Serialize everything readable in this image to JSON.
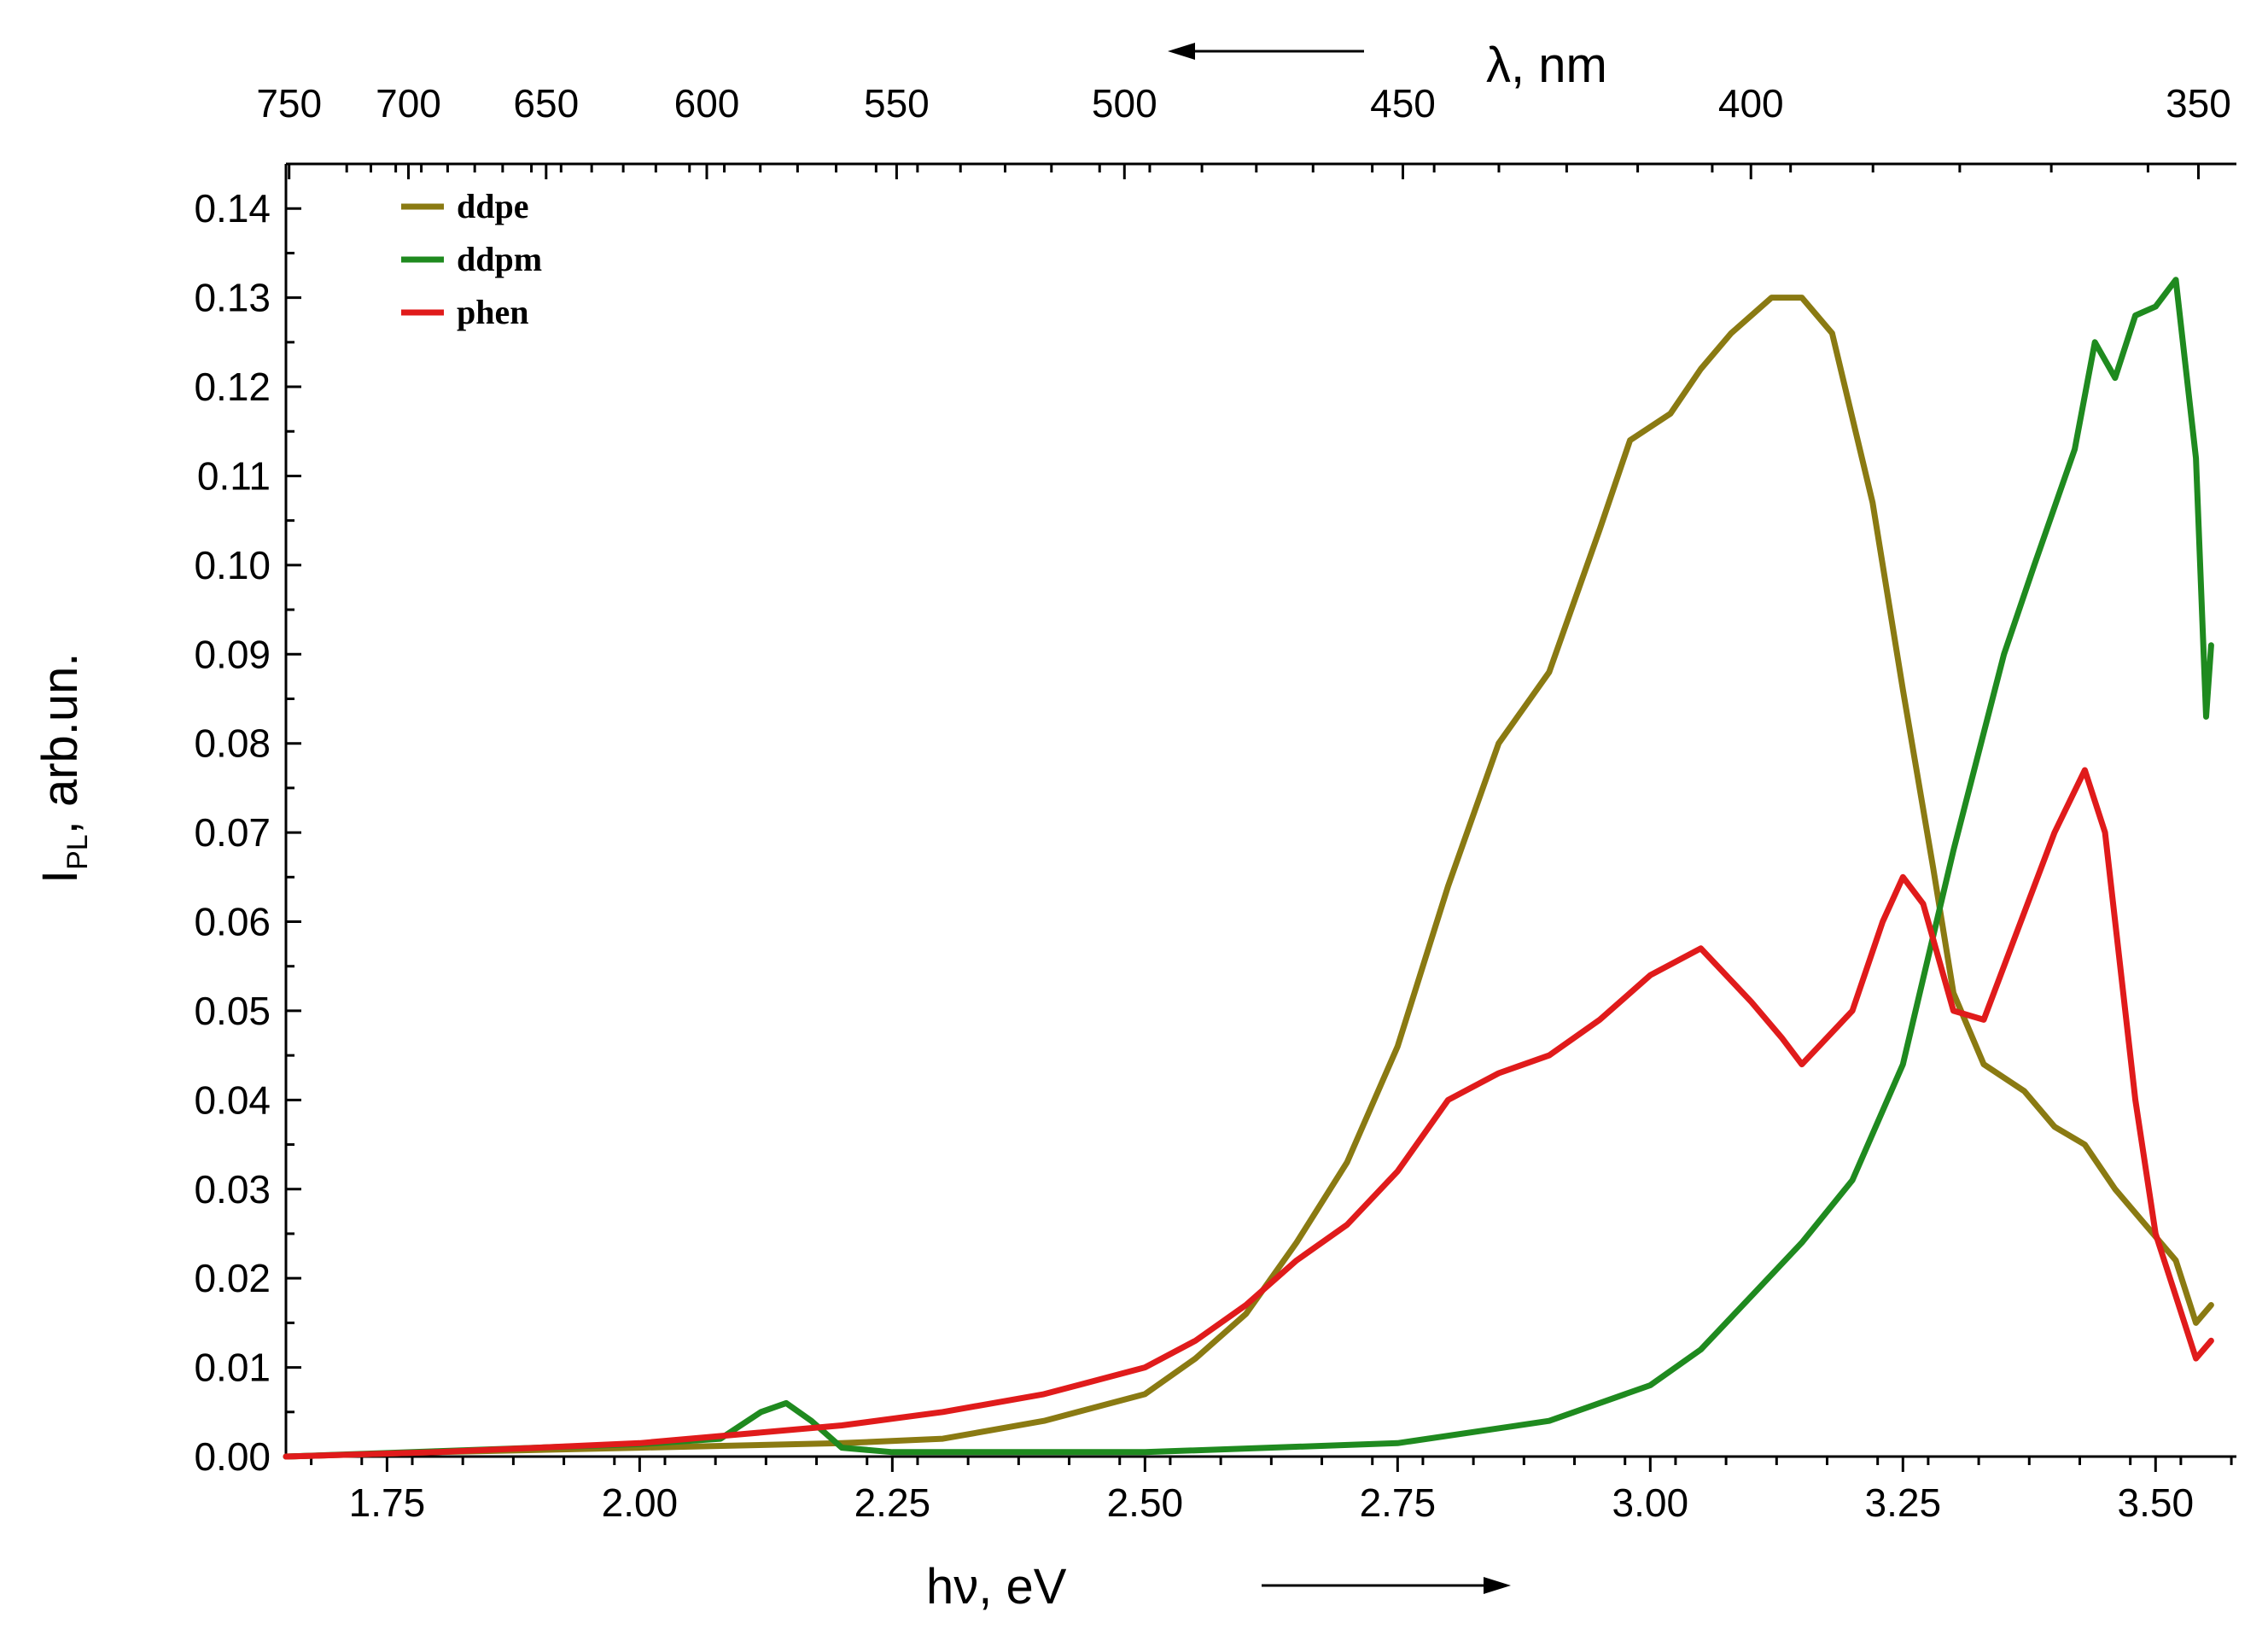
{
  "chart_data": {
    "type": "line",
    "title": "",
    "xlabel": "hν, eV",
    "ylabel_main": "I",
    "ylabel_sub": "PL",
    "ylabel_rest": ", arb.un.",
    "top_xlabel": "λ, nm",
    "xlim": [
      1.65,
      3.58
    ],
    "ylim": [
      0,
      0.145
    ],
    "x_ticks": [
      "1.75",
      "2.00",
      "2.25",
      "2.50",
      "2.75",
      "3.00",
      "3.25",
      "3.50"
    ],
    "x_tick_values": [
      1.75,
      2.0,
      2.25,
      2.5,
      2.75,
      3.0,
      3.25,
      3.5
    ],
    "y_ticks": [
      "0.00",
      "0.01",
      "0.02",
      "0.03",
      "0.04",
      "0.05",
      "0.06",
      "0.07",
      "0.08",
      "0.09",
      "0.10",
      "0.11",
      "0.12",
      "0.13",
      "0.14"
    ],
    "y_tick_values": [
      0,
      0.01,
      0.02,
      0.03,
      0.04,
      0.05,
      0.06,
      0.07,
      0.08,
      0.09,
      0.1,
      0.11,
      0.12,
      0.13,
      0.14
    ],
    "top_ticks": [
      "750",
      "700",
      "650",
      "600",
      "550",
      "500",
      "450",
      "400",
      "350"
    ],
    "top_tick_values_nm": [
      750,
      700,
      650,
      600,
      550,
      500,
      450,
      400,
      350
    ],
    "legend_position": "top-left",
    "series": [
      {
        "name": "ddpe",
        "color": "#8a7a12",
        "x": [
          1.65,
          1.8,
          2.0,
          2.2,
          2.3,
          2.4,
          2.5,
          2.55,
          2.6,
          2.65,
          2.7,
          2.75,
          2.8,
          2.85,
          2.9,
          2.95,
          2.98,
          3.02,
          3.05,
          3.08,
          3.12,
          3.15,
          3.18,
          3.22,
          3.25,
          3.28,
          3.3,
          3.33,
          3.37,
          3.4,
          3.43,
          3.46,
          3.49,
          3.52,
          3.54,
          3.555
        ],
        "y": [
          0.0,
          0.0005,
          0.001,
          0.0015,
          0.002,
          0.004,
          0.007,
          0.011,
          0.016,
          0.024,
          0.033,
          0.046,
          0.064,
          0.08,
          0.088,
          0.104,
          0.114,
          0.117,
          0.122,
          0.126,
          0.13,
          0.13,
          0.126,
          0.107,
          0.086,
          0.066,
          0.052,
          0.044,
          0.041,
          0.037,
          0.035,
          0.03,
          0.026,
          0.022,
          0.015,
          0.017
        ]
      },
      {
        "name": "ddpm",
        "color": "#1f8a1f",
        "x": [
          1.65,
          1.8,
          2.0,
          2.08,
          2.12,
          2.145,
          2.17,
          2.2,
          2.25,
          2.5,
          2.75,
          2.9,
          3.0,
          3.05,
          3.1,
          3.15,
          3.2,
          3.25,
          3.3,
          3.35,
          3.38,
          3.42,
          3.44,
          3.46,
          3.48,
          3.5,
          3.52,
          3.54,
          3.55,
          3.555
        ],
        "y": [
          0.0,
          0.0006,
          0.0014,
          0.002,
          0.005,
          0.006,
          0.004,
          0.001,
          0.0005,
          0.0005,
          0.0015,
          0.004,
          0.008,
          0.012,
          0.018,
          0.024,
          0.031,
          0.044,
          0.068,
          0.09,
          0.1,
          0.113,
          0.125,
          0.121,
          0.128,
          0.129,
          0.132,
          0.112,
          0.083,
          0.091
        ]
      },
      {
        "name": "phen",
        "color": "#e01b1b",
        "x": [
          1.65,
          1.8,
          2.0,
          2.1,
          2.2,
          2.3,
          2.4,
          2.5,
          2.55,
          2.6,
          2.65,
          2.7,
          2.75,
          2.8,
          2.85,
          2.9,
          2.95,
          3.0,
          3.05,
          3.1,
          3.13,
          3.15,
          3.2,
          3.23,
          3.25,
          3.27,
          3.3,
          3.33,
          3.36,
          3.4,
          3.43,
          3.45,
          3.48,
          3.5,
          3.52,
          3.54,
          3.555
        ],
        "y": [
          0.0,
          0.0005,
          0.0015,
          0.0025,
          0.0035,
          0.005,
          0.007,
          0.01,
          0.013,
          0.017,
          0.022,
          0.026,
          0.032,
          0.04,
          0.043,
          0.045,
          0.049,
          0.054,
          0.057,
          0.051,
          0.047,
          0.044,
          0.05,
          0.06,
          0.065,
          0.062,
          0.05,
          0.049,
          0.058,
          0.07,
          0.077,
          0.07,
          0.04,
          0.025,
          0.018,
          0.011,
          0.013
        ]
      }
    ]
  }
}
